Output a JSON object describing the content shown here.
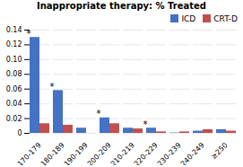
{
  "chart_data": {
    "type": "bar",
    "title": "Inappropriate therapy: % Treated",
    "categories": [
      "170-179",
      "180-189",
      "190-199",
      "200-209",
      "210-219",
      "220-229",
      "230-239",
      "240-249",
      "≥250"
    ],
    "series": [
      {
        "name": "ICD",
        "color": "#4472C4",
        "values": [
          0.13,
          0.058,
          0.007,
          0.021,
          0.007,
          0.007,
          0.0005,
          0.003,
          0.005
        ]
      },
      {
        "name": "CRT-D",
        "color": "#C0504D",
        "values": [
          0.013,
          0.011,
          0.0,
          0.013,
          0.006,
          0.002,
          0.002,
          0.005,
          0.003
        ]
      }
    ],
    "annotations": [
      {
        "category": "170-179",
        "text": "*"
      },
      {
        "category": "180-189",
        "text": "*"
      },
      {
        "category": "200-209",
        "text": "*"
      },
      {
        "category": "220-229",
        "text": "*"
      }
    ],
    "ylim": [
      0,
      0.14
    ],
    "yticks": [
      0,
      0.02,
      0.04,
      0.06,
      0.08,
      {
        "value": 0.1,
        "label": "0.10"
      },
      0.12,
      0.14
    ],
    "grid": true,
    "legend": "upper right"
  }
}
